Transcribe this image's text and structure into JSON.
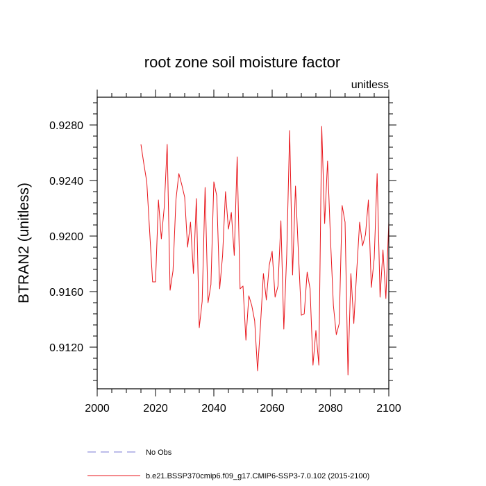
{
  "chart_data": {
    "type": "line",
    "title": "root zone soil moisture factor",
    "units_label": "unitless",
    "xlabel": "",
    "ylabel": "BTRAN2  (unitless)",
    "xlim": [
      2000,
      2100
    ],
    "ylim": [
      0.909,
      0.93
    ],
    "x_ticks": [
      2000,
      2020,
      2040,
      2060,
      2080,
      2100
    ],
    "x_tick_labels": [
      "2000",
      "2020",
      "2040",
      "2060",
      "2080",
      "2100"
    ],
    "y_ticks": [
      0.912,
      0.916,
      0.92,
      0.924,
      0.928
    ],
    "y_tick_labels": [
      "0.9120",
      "0.9160",
      "0.9200",
      "0.9240",
      "0.9280"
    ],
    "x_minor_step": 5,
    "y_minor_step": 0.0008,
    "grid": false,
    "legend_position": "bottom-left below plot",
    "series": [
      {
        "name": "b.e21.BSSP370cmip6.f09_g17.CMIP6-SSP3-7.0.102 (2015-2100)",
        "color": "#e8151b",
        "style": "solid",
        "x": [
          2015,
          2016,
          2017,
          2018,
          2019,
          2020,
          2021,
          2022,
          2023,
          2024,
          2025,
          2026,
          2027,
          2028,
          2029,
          2030,
          2031,
          2032,
          2033,
          2034,
          2035,
          2036,
          2037,
          2038,
          2039,
          2040,
          2041,
          2042,
          2043,
          2044,
          2045,
          2046,
          2047,
          2048,
          2049,
          2050,
          2051,
          2052,
          2053,
          2054,
          2055,
          2056,
          2057,
          2058,
          2059,
          2060,
          2061,
          2062,
          2063,
          2064,
          2065,
          2066,
          2067,
          2068,
          2069,
          2070,
          2071,
          2072,
          2073,
          2074,
          2075,
          2076,
          2077,
          2078,
          2079,
          2080,
          2081,
          2082,
          2083,
          2084,
          2085,
          2086,
          2087,
          2088,
          2089,
          2090,
          2091,
          2092,
          2093,
          2094,
          2095,
          2096,
          2097,
          2098,
          2099,
          2100
        ],
        "y": [
          0.9266,
          0.9252,
          0.9239,
          0.9203,
          0.9167,
          0.9167,
          0.9226,
          0.9198,
          0.9221,
          0.9266,
          0.9161,
          0.9175,
          0.9226,
          0.9245,
          0.9237,
          0.9228,
          0.9192,
          0.921,
          0.9173,
          0.9227,
          0.9134,
          0.9153,
          0.9235,
          0.9152,
          0.9165,
          0.9239,
          0.9229,
          0.9162,
          0.9186,
          0.9232,
          0.9205,
          0.9217,
          0.9186,
          0.9257,
          0.9162,
          0.9164,
          0.9125,
          0.9157,
          0.915,
          0.9139,
          0.9103,
          0.9136,
          0.9173,
          0.9154,
          0.9179,
          0.9189,
          0.9156,
          0.9164,
          0.9211,
          0.9133,
          0.9187,
          0.9276,
          0.9172,
          0.9236,
          0.9188,
          0.9143,
          0.9144,
          0.9174,
          0.9162,
          0.9107,
          0.9132,
          0.9107,
          0.9279,
          0.9209,
          0.9254,
          0.9198,
          0.915,
          0.9129,
          0.9137,
          0.9222,
          0.921,
          0.91,
          0.9173,
          0.9137,
          0.9175,
          0.921,
          0.9193,
          0.9201,
          0.9226,
          0.9163,
          0.9184,
          0.9245,
          0.9156,
          0.919,
          0.9155,
          0.921
        ]
      }
    ],
    "legend": [
      {
        "name": "No Obs",
        "color": "#7b7bd6",
        "style": "dashed"
      },
      {
        "name": "b.e21.BSSP370cmip6.f09_g17.CMIP6-SSP3-7.0.102 (2015-2100)",
        "color": "#e8151b",
        "style": "solid"
      }
    ]
  }
}
